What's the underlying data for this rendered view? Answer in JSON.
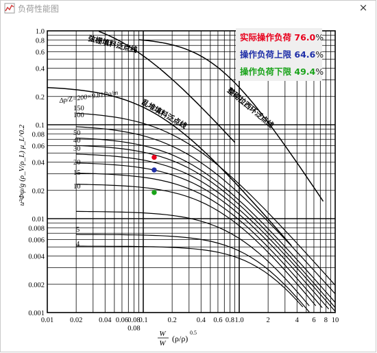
{
  "window": {
    "title": "负荷性能图",
    "close_glyph": "×"
  },
  "status": {
    "actual": {
      "label": "实际操作负荷",
      "value": "76.0",
      "unit": "%",
      "color": "#e8001c"
    },
    "upper": {
      "label": "操作负荷上限",
      "value": "64.6",
      "unit": "%",
      "color": "#1f2fa8"
    },
    "lower": {
      "label": "操作负荷下限",
      "value": "49.4",
      "unit": "%",
      "color": "#19a319"
    }
  },
  "chart_data": {
    "type": "line",
    "x_scale": "log",
    "y_scale": "log",
    "xlim": [
      0.01,
      10
    ],
    "ylim": [
      0.001,
      1.0
    ],
    "x_ticks": [
      "0.01",
      "0.02",
      "0.04",
      "0.06",
      "0.08",
      "0.1",
      "0.2",
      "0.4",
      "0.6",
      "0.8",
      "1.0",
      "2",
      "4",
      "6",
      "8",
      "10"
    ],
    "x_tick_extra": "0.08",
    "y_ticks": [
      "1.0",
      "0.8",
      "0.6",
      "0.4",
      "0.2",
      "0.1",
      "0.08",
      "0.06",
      "0.04",
      "0.02",
      "0.01",
      "0.008",
      "0.006",
      "0.004",
      "0.002",
      "0.001"
    ],
    "xlabel": "W_L/W_G (ρ_V/ρ_L)^0.5",
    "ylabel": "u²Φψ/g (ρ_V/ρ_L) μ_L^0.2",
    "curve_labels": {
      "regular_packing_flood": "弦栅填料泛点线",
      "random_packing_flood": "乱堆填料泛点线",
      "ordered_packing_flood": "整砌拉西环泛点线",
      "pressure_drop": "Δp/Z=200×9.81Pa/m"
    },
    "pressure_drop_labels": [
      "150",
      "100",
      "50",
      "40",
      "30",
      "20",
      "15",
      "10",
      "5",
      "4"
    ],
    "points": [
      {
        "name": "actual",
        "x": 0.13,
        "y": 0.045,
        "color": "#e8001c"
      },
      {
        "name": "upper",
        "x": 0.13,
        "y": 0.033,
        "color": "#1f2fa8"
      },
      {
        "name": "lower",
        "x": 0.13,
        "y": 0.019,
        "color": "#19a319"
      }
    ]
  }
}
